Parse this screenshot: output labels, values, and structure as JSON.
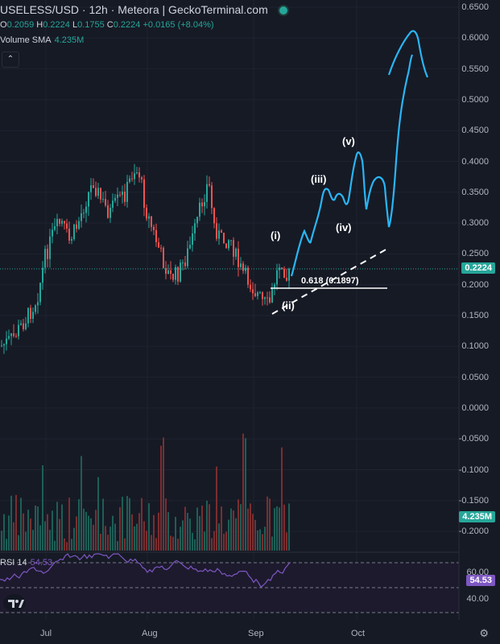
{
  "header": {
    "title": "USELESS/USD · 12h · Meteora | GeckoTerminal.com",
    "open_label": "O",
    "open": "0.2059",
    "high_label": "H",
    "high": "0.2224",
    "low_label": "L",
    "low": "0.1755",
    "close_label": "C",
    "close": "0.2224",
    "change": "+0.0165 (+8.04%)"
  },
  "volume_indicator": {
    "label": "Volume SMA",
    "value": "4.235M"
  },
  "rsi_indicator": {
    "label": "RSI 14",
    "value": "54.53"
  },
  "price_axis": [
    "0.6500",
    "0.6000",
    "0.5500",
    "0.5000",
    "0.4500",
    "0.4000",
    "0.3500",
    "0.3000",
    "0.2500",
    "0.2000",
    "0.1500",
    "0.1000",
    "0.0500",
    "0.0000",
    "-0.0500",
    "-0.1000",
    "-0.1500",
    "-0.2000"
  ],
  "rsi_axis": [
    "60.00",
    "40.00"
  ],
  "time_axis": [
    "Jul",
    "Aug",
    "Sep",
    "Oct"
  ],
  "price_tag": "0.2224",
  "volume_tag": "4.235M",
  "rsi_tag": "54.53",
  "annotations": {
    "wave_i": "(i)",
    "wave_ii": "(ii)",
    "wave_iii": "(iii)",
    "wave_iv": "(iv)",
    "wave_v": "(v)",
    "fib": "0.618 (0.1897)"
  },
  "colors": {
    "up": "#26a69a",
    "down": "#ef5350",
    "projection": "#29b6f6",
    "rsi": "#7e57c2"
  }
}
